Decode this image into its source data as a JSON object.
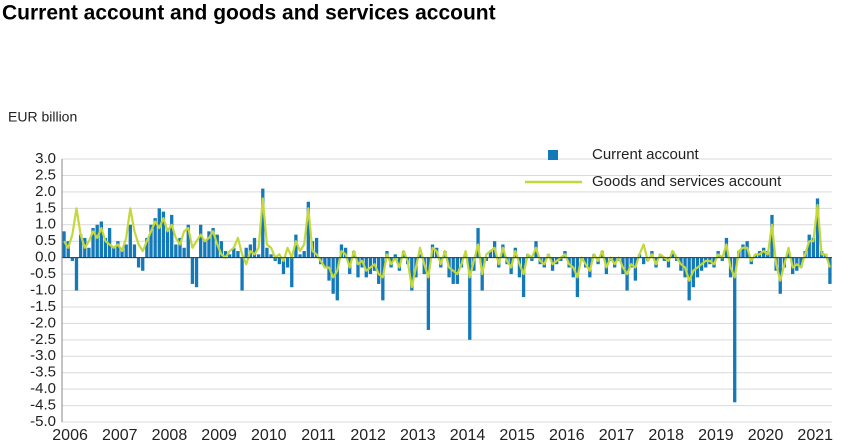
{
  "chart_data": {
    "type": "bar-line",
    "title": "Current account and goods and services account",
    "y_label": "EUR billion",
    "categories": [
      "2006",
      null,
      null,
      null,
      null,
      null,
      null,
      null,
      null,
      null,
      null,
      null,
      "2007",
      null,
      null,
      null,
      null,
      null,
      null,
      null,
      null,
      null,
      null,
      null,
      "2008",
      null,
      null,
      null,
      null,
      null,
      null,
      null,
      null,
      null,
      null,
      null,
      "2009",
      null,
      null,
      null,
      null,
      null,
      null,
      null,
      null,
      null,
      null,
      null,
      "2010",
      null,
      null,
      null,
      null,
      null,
      null,
      null,
      null,
      null,
      null,
      null,
      "2011",
      null,
      null,
      null,
      null,
      null,
      null,
      null,
      null,
      null,
      null,
      null,
      "2012",
      null,
      null,
      null,
      null,
      null,
      null,
      null,
      null,
      null,
      null,
      null,
      "2013",
      null,
      null,
      null,
      null,
      null,
      null,
      null,
      null,
      null,
      null,
      null,
      "2014",
      null,
      null,
      null,
      null,
      null,
      null,
      null,
      null,
      null,
      null,
      null,
      "2015",
      null,
      null,
      null,
      null,
      null,
      null,
      null,
      null,
      null,
      null,
      null,
      "2016",
      null,
      null,
      null,
      null,
      null,
      null,
      null,
      null,
      null,
      null,
      null,
      "2017",
      null,
      null,
      null,
      null,
      null,
      null,
      null,
      null,
      null,
      null,
      null,
      "2018",
      null,
      null,
      null,
      null,
      null,
      null,
      null,
      null,
      null,
      null,
      null,
      "2019",
      null,
      null,
      null,
      null,
      null,
      null,
      null,
      null,
      null,
      null,
      null,
      "2020",
      null,
      null,
      null,
      null,
      null,
      null,
      null,
      null,
      null,
      null,
      null,
      "2021",
      null,
      null,
      null,
      null,
      null
    ],
    "series": [
      {
        "name": "Current account",
        "type": "bar",
        "color": "#1479b8",
        "values": [
          0.8,
          0.5,
          -0.1,
          -1.0,
          0.7,
          0.6,
          0.3,
          0.9,
          1.0,
          1.1,
          0.6,
          0.9,
          0.3,
          0.5,
          0.3,
          0.4,
          1.0,
          0.4,
          -0.3,
          -0.4,
          0.6,
          1.0,
          1.2,
          1.5,
          1.4,
          0.9,
          1.3,
          0.4,
          0.6,
          0.3,
          1.0,
          -0.8,
          -0.9,
          1.0,
          0.5,
          0.8,
          0.9,
          0.7,
          0.5,
          0.2,
          0.1,
          0.3,
          0.2,
          -1.0,
          0.3,
          0.4,
          0.6,
          0.1,
          2.1,
          0.3,
          0.1,
          -0.1,
          -0.2,
          -0.5,
          -0.3,
          -0.9,
          0.7,
          0.1,
          0.2,
          1.7,
          0.5,
          0.6,
          -0.2,
          -0.3,
          -0.7,
          -1.1,
          -1.3,
          0.4,
          0.3,
          -0.5,
          0.2,
          -0.6,
          -0.3,
          -0.6,
          -0.5,
          -0.4,
          -0.8,
          -1.3,
          0.2,
          -0.3,
          0.1,
          -0.4,
          0.2,
          -0.2,
          -1.0,
          -0.6,
          0.1,
          -0.5,
          -2.2,
          0.4,
          0.3,
          -0.3,
          0.2,
          -0.6,
          -0.8,
          -0.8,
          -0.3,
          0.1,
          -2.5,
          -0.4,
          0.9,
          -1.0,
          -0.1,
          0.2,
          0.5,
          -0.3,
          0.4,
          -0.2,
          -0.5,
          0.3,
          -0.6,
          -1.2,
          0.1,
          -0.1,
          0.5,
          -0.2,
          -0.3,
          0.1,
          -0.4,
          -0.2,
          -0.1,
          0.2,
          -0.3,
          -0.6,
          -1.2,
          -0.1,
          -0.3,
          -0.6,
          0.1,
          -0.2,
          0.2,
          -0.5,
          -0.1,
          -0.3,
          -0.1,
          -0.5,
          -1.0,
          -0.3,
          -0.7,
          0.1,
          -0.2,
          -0.1,
          0.2,
          -0.3,
          0.1,
          -0.1,
          -0.3,
          0.2,
          -0.1,
          -0.4,
          -0.6,
          -1.3,
          -0.9,
          -0.6,
          -0.4,
          -0.3,
          -0.2,
          -0.3,
          0.2,
          -0.1,
          0.6,
          -0.6,
          -4.4,
          0.2,
          0.4,
          0.5,
          -0.2,
          0.1,
          0.2,
          0.3,
          0.2,
          1.3,
          -0.4,
          -1.1,
          -0.3,
          0.2,
          -0.5,
          -0.4,
          -0.3,
          0.2,
          0.7,
          0.6,
          1.8,
          0.2,
          0.1,
          -0.8
        ]
      },
      {
        "name": "Goods and services account",
        "type": "line",
        "color": "#c3d83a",
        "values": [
          0.5,
          0.3,
          0.7,
          1.5,
          0.7,
          0.3,
          0.5,
          0.8,
          0.6,
          0.9,
          0.5,
          0.4,
          0.3,
          0.4,
          0.2,
          0.6,
          1.5,
          0.8,
          0.4,
          0.2,
          0.5,
          0.8,
          1.1,
          0.9,
          1.2,
          0.8,
          1.0,
          0.6,
          0.4,
          0.8,
          0.9,
          0.3,
          0.5,
          0.7,
          0.5,
          0.6,
          0.8,
          0.4,
          0.1,
          0.0,
          0.2,
          0.3,
          0.6,
          0.1,
          -0.2,
          0.2,
          0.1,
          0.3,
          1.8,
          0.4,
          0.3,
          0.0,
          0.1,
          -0.1,
          0.3,
          0.0,
          0.5,
          0.2,
          0.4,
          1.5,
          0.2,
          0.1,
          -0.1,
          -0.3,
          -0.3,
          -0.6,
          -0.4,
          0.2,
          0.1,
          -0.3,
          0.2,
          -0.2,
          -0.1,
          -0.4,
          -0.3,
          -0.2,
          -0.5,
          -0.6,
          0.1,
          -0.2,
          0.0,
          -0.3,
          0.2,
          -0.1,
          -0.9,
          -0.3,
          0.3,
          -0.2,
          -0.6,
          0.3,
          0.2,
          -0.2,
          0.2,
          -0.3,
          -0.4,
          -0.5,
          -0.2,
          0.2,
          -0.6,
          -0.1,
          0.4,
          -0.5,
          0.1,
          0.2,
          0.3,
          -0.2,
          0.3,
          -0.1,
          -0.3,
          0.2,
          -0.2,
          -0.5,
          0.1,
          0.0,
          0.3,
          -0.1,
          -0.2,
          0.1,
          -0.2,
          -0.1,
          0.0,
          0.1,
          -0.2,
          -0.3,
          -0.6,
          0.0,
          -0.2,
          -0.4,
          0.1,
          -0.1,
          0.2,
          -0.3,
          0.0,
          -0.2,
          0.0,
          -0.3,
          -0.5,
          -0.2,
          -0.3,
          0.1,
          0.4,
          -0.1,
          0.1,
          -0.2,
          0.1,
          0.0,
          -0.1,
          0.2,
          0.0,
          -0.2,
          -0.3,
          -0.7,
          -0.4,
          -0.3,
          -0.2,
          -0.1,
          -0.1,
          -0.2,
          0.1,
          0.0,
          0.4,
          -0.3,
          -0.6,
          0.2,
          0.3,
          0.3,
          -0.1,
          0.1,
          0.1,
          0.2,
          0.1,
          1.0,
          -0.2,
          -0.7,
          -0.2,
          0.3,
          -0.3,
          -0.2,
          -0.3,
          0.1,
          0.5,
          0.5,
          1.6,
          0.1,
          0.1,
          -0.3
        ]
      }
    ],
    "ylim": [
      -5.0,
      3.0
    ],
    "yticks": [
      {
        "value": 3,
        "label": "3.0"
      },
      2.5,
      {
        "value": 2,
        "label": "2.0"
      },
      1.5,
      {
        "value": 1,
        "label": "1.0"
      },
      0.5,
      {
        "value": 0,
        "label": "0.0"
      },
      -0.5,
      {
        "value": -1,
        "label": "-1.0"
      },
      -1.5,
      {
        "value": -2,
        "label": "-2.0"
      },
      -2.5,
      {
        "value": -3,
        "label": "-3.0"
      },
      -3.5,
      {
        "value": -4,
        "label": "-4.0"
      },
      -4.5,
      {
        "value": -5,
        "label": "-5.0"
      }
    ],
    "grid": true,
    "legend": "top-right"
  }
}
